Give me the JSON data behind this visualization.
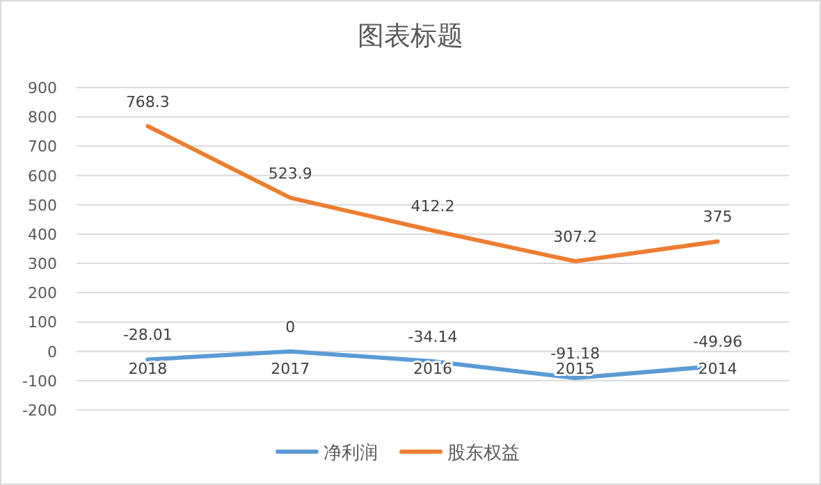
{
  "chart_data": {
    "type": "line",
    "title": "图表标题",
    "categories": [
      "2018",
      "2017",
      "2016",
      "2015",
      "2014"
    ],
    "series": [
      {
        "name": "净利润",
        "color": "#5b9bd5",
        "values": [
          -28.01,
          0,
          -34.14,
          -91.18,
          -49.96
        ]
      },
      {
        "name": "股东权益",
        "color": "#ed7d31",
        "values": [
          768.3,
          523.9,
          412.2,
          307.2,
          375
        ]
      }
    ],
    "ylim": [
      -200,
      900
    ],
    "yticks": [
      -200,
      -100,
      0,
      100,
      200,
      300,
      400,
      500,
      600,
      700,
      800,
      900
    ],
    "grid": "y",
    "legend": "bottom",
    "data_labels": true,
    "marker": "none",
    "line_style": "solid"
  }
}
